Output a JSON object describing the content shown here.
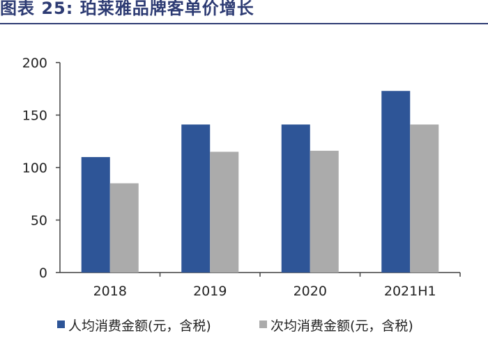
{
  "title": "图表 25:  珀莱雅品牌客单价增长",
  "colors": {
    "series1": "#2e5597",
    "series2": "#ababab",
    "title": "#2d3b73"
  },
  "chart_data": {
    "type": "bar",
    "categories": [
      "2018",
      "2019",
      "2020",
      "2021H1"
    ],
    "series": [
      {
        "name": "人均消费金额(元，含税)",
        "values": [
          110,
          141,
          141,
          173
        ]
      },
      {
        "name": "次均消费金额(元，含税)",
        "values": [
          85,
          115,
          116,
          141
        ]
      }
    ],
    "yticks": [
      "0",
      "50",
      "100",
      "150",
      "200"
    ],
    "ylim": [
      0,
      200
    ],
    "grid": false,
    "legend_position": "bottom"
  }
}
